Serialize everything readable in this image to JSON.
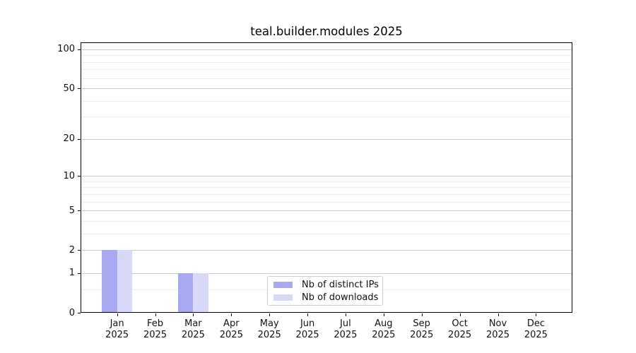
{
  "chart_data": {
    "type": "bar",
    "title": "teal.builder.modules 2025",
    "categories": [
      {
        "month": "Jan",
        "year": "2025"
      },
      {
        "month": "Feb",
        "year": "2025"
      },
      {
        "month": "Mar",
        "year": "2025"
      },
      {
        "month": "Apr",
        "year": "2025"
      },
      {
        "month": "May",
        "year": "2025"
      },
      {
        "month": "Jun",
        "year": "2025"
      },
      {
        "month": "Jul",
        "year": "2025"
      },
      {
        "month": "Aug",
        "year": "2025"
      },
      {
        "month": "Sep",
        "year": "2025"
      },
      {
        "month": "Oct",
        "year": "2025"
      },
      {
        "month": "Nov",
        "year": "2025"
      },
      {
        "month": "Dec",
        "year": "2025"
      }
    ],
    "series": [
      {
        "name": "Nb of distinct IPs",
        "color": "#a8a8f2",
        "values": [
          2,
          0,
          1,
          0,
          0,
          0,
          0,
          0,
          0,
          0,
          0,
          0
        ]
      },
      {
        "name": "Nb of downloads",
        "color": "#d8d8f9",
        "values": [
          2,
          0,
          1,
          0,
          0,
          0,
          0,
          0,
          0,
          0,
          0,
          0
        ]
      }
    ],
    "xlabel": "",
    "ylabel": "",
    "yscale": "log1p",
    "ylim": [
      0,
      113
    ],
    "yticks_major": [
      0,
      1,
      2,
      5,
      10,
      20,
      50,
      100
    ],
    "yticks_minor": [
      0.5,
      3,
      4,
      6,
      7,
      8,
      9,
      30,
      40,
      60,
      70,
      80,
      90
    ],
    "grid": true,
    "legend_position": "inside-bottom-center"
  },
  "colors": {
    "background": "#ffffff",
    "axis": "#000000",
    "grid_major": "#c9c9c9",
    "grid_minor": "#ededed",
    "text": "#111111",
    "legend_border": "#cccccc"
  }
}
